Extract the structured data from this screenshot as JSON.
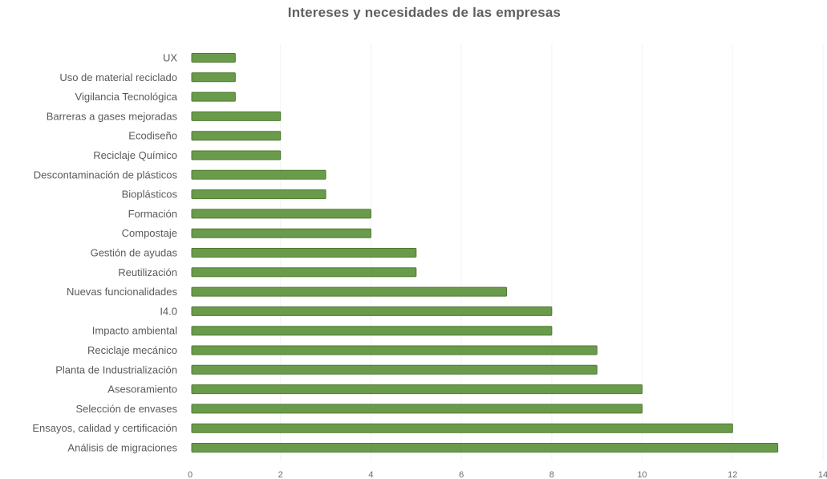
{
  "chart_data": {
    "type": "bar",
    "orientation": "horizontal",
    "title": "Intereses y necesidades de las empresas",
    "xlabel": "",
    "ylabel": "",
    "xlim": [
      0,
      14
    ],
    "x_ticks": [
      0,
      2,
      4,
      6,
      8,
      10,
      12,
      14
    ],
    "grid": true,
    "legend": "none",
    "bar_color": "#6a9b4a",
    "categories": [
      "UX",
      "Uso de material reciclado",
      "Vigilancia Tecnológica",
      "Barreras a gases mejoradas",
      "Ecodiseño",
      "Reciclaje Químico",
      "Descontaminación de plásticos",
      "Bioplásticos",
      "Formación",
      "Compostaje",
      "Gestión de ayudas",
      "Reutilización",
      "Nuevas funcionalidades",
      "I4.0",
      "Impacto ambiental",
      "Reciclaje mecánico",
      "Planta de Industrialización",
      "Asesoramiento",
      "Selección de envases",
      "Ensayos, calidad y certificación",
      "Análisis de migraciones"
    ],
    "values": [
      1,
      1,
      1,
      2,
      2,
      2,
      3,
      3,
      4,
      4,
      5,
      5,
      7,
      8,
      8,
      9,
      9,
      10,
      10,
      12,
      13
    ]
  }
}
